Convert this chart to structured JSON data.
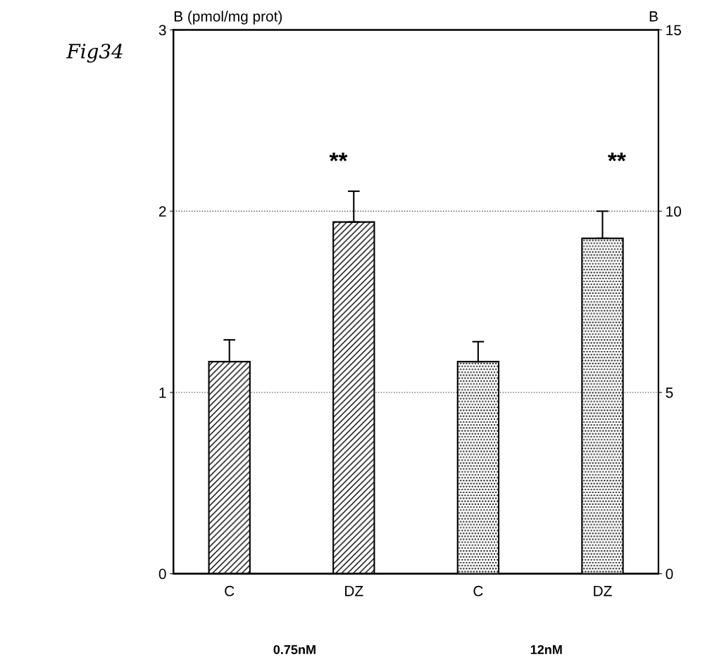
{
  "chart_data": {
    "type": "bar",
    "ylabel": "B (pmol/mg prot)",
    "y2label": "B",
    "categories": [
      "C",
      "DZ",
      "C",
      "DZ"
    ],
    "series": [
      {
        "color": "#000000",
        "values": [
          1.17,
          1.94,
          null,
          null
        ],
        "errors": [
          [
            1.17,
            1.29
          ],
          [
            1.94,
            2.11
          ],
          null,
          null
        ]
      },
      {
        "color": "#000000",
        "axis": "y2",
        "values": [
          null,
          null,
          5.85,
          9.25
        ],
        "errors": [
          null,
          null,
          [
            5.85,
            6.4
          ],
          [
            9.25,
            10.0
          ]
        ]
      }
    ],
    "ylim": [
      0,
      3
    ],
    "yticks": [
      0,
      1,
      2,
      3
    ],
    "y2lim": [
      0,
      15
    ],
    "y2ticks": [
      0,
      5,
      10,
      15
    ],
    "grid": "y",
    "annotations": [
      "Fig34",
      "**",
      "**",
      "0.75nM",
      "12nM"
    ]
  }
}
